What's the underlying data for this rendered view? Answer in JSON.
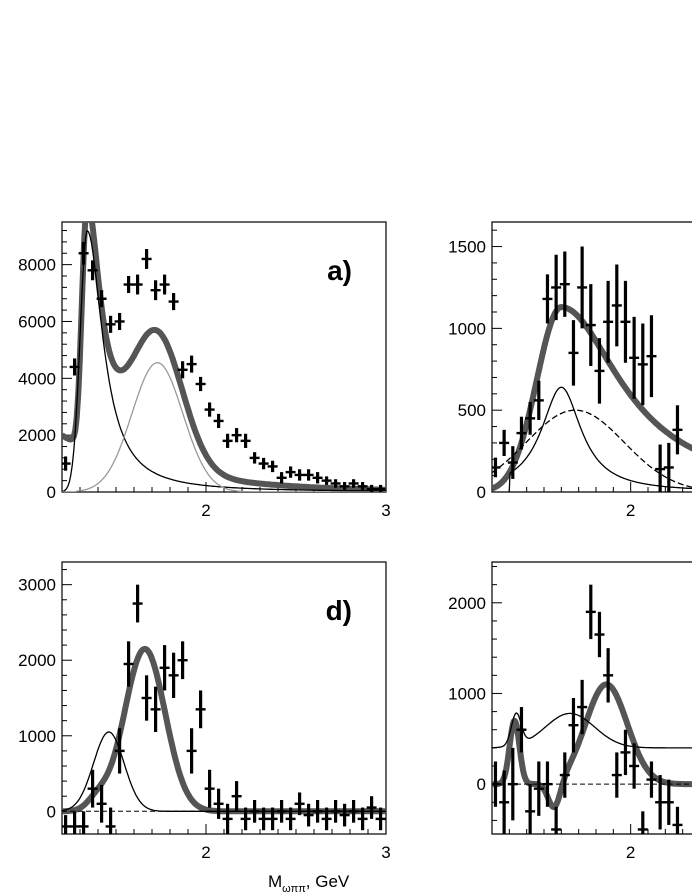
{
  "figure": {
    "x_axis_title_main": "M",
    "x_axis_title_sub": "ωππ",
    "x_axis_title_unit": ", GeV"
  },
  "chart_data": [
    {
      "type": "scatter",
      "panel": "a)",
      "xlim": [
        1.2,
        3.0
      ],
      "ylim": [
        0,
        9500
      ],
      "x_ticks": [
        2,
        3
      ],
      "y_ticks": [
        0,
        2000,
        4000,
        6000,
        8000
      ],
      "grid": false,
      "points": [
        {
          "x": 1.22,
          "y": 1000,
          "e": 250
        },
        {
          "x": 1.27,
          "y": 4400,
          "e": 300
        },
        {
          "x": 1.32,
          "y": 8400,
          "e": 400
        },
        {
          "x": 1.37,
          "y": 7800,
          "e": 350
        },
        {
          "x": 1.42,
          "y": 6800,
          "e": 300
        },
        {
          "x": 1.47,
          "y": 5900,
          "e": 300
        },
        {
          "x": 1.52,
          "y": 6000,
          "e": 300
        },
        {
          "x": 1.57,
          "y": 7300,
          "e": 300
        },
        {
          "x": 1.62,
          "y": 7300,
          "e": 350
        },
        {
          "x": 1.67,
          "y": 8200,
          "e": 350
        },
        {
          "x": 1.72,
          "y": 7100,
          "e": 350
        },
        {
          "x": 1.77,
          "y": 7300,
          "e": 350
        },
        {
          "x": 1.82,
          "y": 6700,
          "e": 300
        },
        {
          "x": 1.87,
          "y": 4300,
          "e": 300
        },
        {
          "x": 1.92,
          "y": 4500,
          "e": 300
        },
        {
          "x": 1.97,
          "y": 3800,
          "e": 250
        },
        {
          "x": 2.02,
          "y": 2900,
          "e": 250
        },
        {
          "x": 2.07,
          "y": 2500,
          "e": 250
        },
        {
          "x": 2.12,
          "y": 1800,
          "e": 250
        },
        {
          "x": 2.17,
          "y": 2000,
          "e": 250
        },
        {
          "x": 2.22,
          "y": 1800,
          "e": 250
        },
        {
          "x": 2.27,
          "y": 1200,
          "e": 200
        },
        {
          "x": 2.32,
          "y": 1000,
          "e": 200
        },
        {
          "x": 2.37,
          "y": 900,
          "e": 200
        },
        {
          "x": 2.42,
          "y": 500,
          "e": 200
        },
        {
          "x": 2.47,
          "y": 700,
          "e": 200
        },
        {
          "x": 2.52,
          "y": 600,
          "e": 200
        },
        {
          "x": 2.57,
          "y": 600,
          "e": 200
        },
        {
          "x": 2.62,
          "y": 500,
          "e": 200
        },
        {
          "x": 2.67,
          "y": 400,
          "e": 150
        },
        {
          "x": 2.72,
          "y": 300,
          "e": 150
        },
        {
          "x": 2.77,
          "y": 200,
          "e": 150
        },
        {
          "x": 2.82,
          "y": 300,
          "e": 150
        },
        {
          "x": 2.87,
          "y": 200,
          "e": 150
        },
        {
          "x": 2.92,
          "y": 100,
          "e": 150
        },
        {
          "x": 2.97,
          "y": 100,
          "e": 150
        }
      ]
    },
    {
      "type": "scatter",
      "panel": "",
      "xlim": [
        1.2,
        2.4
      ],
      "ylim": [
        0,
        1650
      ],
      "x_ticks": [
        2
      ],
      "y_ticks": [
        0,
        500,
        1000,
        1500
      ],
      "grid": false,
      "points": [
        {
          "x": 1.22,
          "y": 150,
          "e": 60
        },
        {
          "x": 1.27,
          "y": 300,
          "e": 80
        },
        {
          "x": 1.32,
          "y": 180,
          "e": 100
        },
        {
          "x": 1.37,
          "y": 360,
          "e": 100
        },
        {
          "x": 1.42,
          "y": 450,
          "e": 100
        },
        {
          "x": 1.47,
          "y": 560,
          "e": 120
        },
        {
          "x": 1.52,
          "y": 1180,
          "e": 150
        },
        {
          "x": 1.57,
          "y": 1250,
          "e": 200
        },
        {
          "x": 1.62,
          "y": 1270,
          "e": 200
        },
        {
          "x": 1.67,
          "y": 850,
          "e": 200
        },
        {
          "x": 1.72,
          "y": 1250,
          "e": 250
        },
        {
          "x": 1.77,
          "y": 1020,
          "e": 250
        },
        {
          "x": 1.82,
          "y": 740,
          "e": 200
        },
        {
          "x": 1.87,
          "y": 1040,
          "e": 250
        },
        {
          "x": 1.92,
          "y": 1140,
          "e": 250
        },
        {
          "x": 1.97,
          "y": 1040,
          "e": 250
        },
        {
          "x": 2.02,
          "y": 820,
          "e": 250
        },
        {
          "x": 2.07,
          "y": 780,
          "e": 250
        },
        {
          "x": 2.12,
          "y": 830,
          "e": 250
        },
        {
          "x": 2.17,
          "y": 140,
          "e": 150
        },
        {
          "x": 2.22,
          "y": 150,
          "e": 150
        },
        {
          "x": 2.27,
          "y": 380,
          "e": 150
        }
      ]
    },
    {
      "type": "scatter",
      "panel": "d)",
      "xlim": [
        1.2,
        3.0
      ],
      "ylim": [
        -300,
        3300
      ],
      "x_ticks": [
        2,
        3
      ],
      "y_ticks": [
        0,
        1000,
        2000,
        3000
      ],
      "grid": false,
      "points": [
        {
          "x": 1.22,
          "y": -200,
          "e": 150
        },
        {
          "x": 1.27,
          "y": -200,
          "e": 200
        },
        {
          "x": 1.32,
          "y": -200,
          "e": 200
        },
        {
          "x": 1.37,
          "y": 300,
          "e": 250
        },
        {
          "x": 1.42,
          "y": 100,
          "e": 250
        },
        {
          "x": 1.47,
          "y": -200,
          "e": 250
        },
        {
          "x": 1.52,
          "y": 800,
          "e": 300
        },
        {
          "x": 1.57,
          "y": 1950,
          "e": 300
        },
        {
          "x": 1.62,
          "y": 2750,
          "e": 250
        },
        {
          "x": 1.67,
          "y": 1500,
          "e": 300
        },
        {
          "x": 1.72,
          "y": 1350,
          "e": 300
        },
        {
          "x": 1.77,
          "y": 1900,
          "e": 300
        },
        {
          "x": 1.82,
          "y": 1800,
          "e": 300
        },
        {
          "x": 1.87,
          "y": 2000,
          "e": 250
        },
        {
          "x": 1.92,
          "y": 800,
          "e": 300
        },
        {
          "x": 1.97,
          "y": 1350,
          "e": 250
        },
        {
          "x": 2.02,
          "y": 300,
          "e": 250
        },
        {
          "x": 2.07,
          "y": 100,
          "e": 200
        },
        {
          "x": 2.12,
          "y": -100,
          "e": 200
        },
        {
          "x": 2.17,
          "y": 200,
          "e": 200
        },
        {
          "x": 2.22,
          "y": -100,
          "e": 150
        },
        {
          "x": 2.27,
          "y": 0,
          "e": 150
        },
        {
          "x": 2.32,
          "y": -100,
          "e": 150
        },
        {
          "x": 2.37,
          "y": -100,
          "e": 150
        },
        {
          "x": 2.42,
          "y": 0,
          "e": 150
        },
        {
          "x": 2.47,
          "y": -100,
          "e": 150
        },
        {
          "x": 2.52,
          "y": 100,
          "e": 150
        },
        {
          "x": 2.57,
          "y": -50,
          "e": 150
        },
        {
          "x": 2.62,
          "y": 0,
          "e": 150
        },
        {
          "x": 2.67,
          "y": -100,
          "e": 150
        },
        {
          "x": 2.72,
          "y": 0,
          "e": 150
        },
        {
          "x": 2.77,
          "y": -50,
          "e": 150
        },
        {
          "x": 2.82,
          "y": 0,
          "e": 150
        },
        {
          "x": 2.87,
          "y": -100,
          "e": 150
        },
        {
          "x": 2.92,
          "y": 50,
          "e": 150
        },
        {
          "x": 2.97,
          "y": -100,
          "e": 150
        }
      ]
    },
    {
      "type": "scatter",
      "panel": "",
      "xlim": [
        1.2,
        2.4
      ],
      "ylim": [
        -550,
        2450
      ],
      "x_ticks": [
        2
      ],
      "y_ticks": [
        0,
        1000,
        2000
      ],
      "grid": false,
      "points": [
        {
          "x": 1.22,
          "y": 0,
          "e": 250
        },
        {
          "x": 1.27,
          "y": -200,
          "e": 350
        },
        {
          "x": 1.32,
          "y": 0,
          "e": 400
        },
        {
          "x": 1.37,
          "y": 600,
          "e": 250
        },
        {
          "x": 1.42,
          "y": -300,
          "e": 300
        },
        {
          "x": 1.47,
          "y": -50,
          "e": 300
        },
        {
          "x": 1.52,
          "y": 0,
          "e": 250
        },
        {
          "x": 1.57,
          "y": -500,
          "e": 250
        },
        {
          "x": 1.62,
          "y": 100,
          "e": 250
        },
        {
          "x": 1.67,
          "y": 650,
          "e": 300
        },
        {
          "x": 1.72,
          "y": 850,
          "e": 300
        },
        {
          "x": 1.77,
          "y": 1900,
          "e": 300
        },
        {
          "x": 1.82,
          "y": 1650,
          "e": 250
        },
        {
          "x": 1.87,
          "y": 1200,
          "e": 300
        },
        {
          "x": 1.92,
          "y": 100,
          "e": 250
        },
        {
          "x": 1.97,
          "y": 350,
          "e": 250
        },
        {
          "x": 2.02,
          "y": 200,
          "e": 250
        },
        {
          "x": 2.07,
          "y": -500,
          "e": 200
        },
        {
          "x": 2.12,
          "y": 50,
          "e": 200
        },
        {
          "x": 2.17,
          "y": -200,
          "e": 300
        },
        {
          "x": 2.22,
          "y": -200,
          "e": 250
        },
        {
          "x": 2.27,
          "y": -450,
          "e": 200
        }
      ]
    }
  ]
}
